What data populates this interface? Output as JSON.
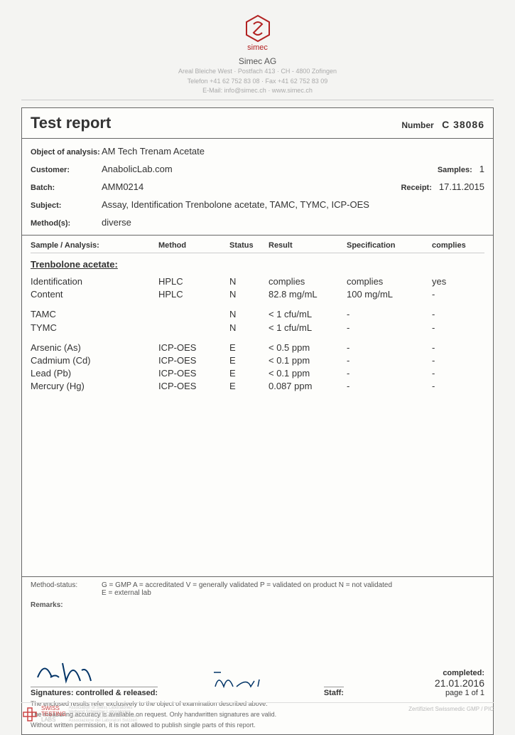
{
  "logo": {
    "brand": "simec",
    "stroke": "#b22222"
  },
  "header": {
    "company": "Simec AG",
    "addr1": "Areal Bleiche West · Postfach 413 · CH - 4800 Zofingen",
    "addr2": "Telefon +41 62 752 83 08 · Fax +41 62 752 83 09",
    "addr3": "E-Mail: info@simec.ch · www.simec.ch"
  },
  "title": "Test report",
  "number_label": "Number",
  "number_value": "C  38086",
  "meta": {
    "object_label": "Object of analysis:",
    "object_value": "AM Tech Trenam Acetate",
    "customer_label": "Customer:",
    "customer_value": "AnabolicLab.com",
    "samples_label": "Samples:",
    "samples_value": "1",
    "batch_label": "Batch:",
    "batch_value": "AMM0214",
    "receipt_label": "Receipt:",
    "receipt_value": "17.11.2015",
    "subject_label": "Subject:",
    "subject_value": "Assay, Identification Trenbolone acetate, TAMC, TYMC, ICP-OES",
    "methods_label": "Method(s):",
    "methods_value": "diverse"
  },
  "table": {
    "head": {
      "sample": "Sample / Analysis:",
      "method": "Method",
      "status": "Status",
      "result": "Result",
      "spec": "Specification",
      "complies": "complies"
    },
    "section": "Trenbolone acetate:",
    "rows": [
      {
        "sa": "Identification",
        "m": "HPLC",
        "st": "N",
        "r": "complies",
        "sp": "complies",
        "c": "yes"
      },
      {
        "sa": "Content",
        "m": "HPLC",
        "st": "N",
        "r": "82.8 mg/mL",
        "sp": "100 mg/mL",
        "c": "-"
      }
    ],
    "rows2": [
      {
        "sa": "TAMC",
        "m": "",
        "st": "N",
        "r": "< 1 cfu/mL",
        "sp": "-",
        "c": "-"
      },
      {
        "sa": "TYMC",
        "m": "",
        "st": "N",
        "r": "< 1 cfu/mL",
        "sp": "-",
        "c": "-"
      }
    ],
    "rows3": [
      {
        "sa": "Arsenic (As)",
        "m": "ICP-OES",
        "st": "E",
        "r": "< 0.5 ppm",
        "sp": "-",
        "c": "-"
      },
      {
        "sa": "Cadmium (Cd)",
        "m": "ICP-OES",
        "st": "E",
        "r": "< 0.1 ppm",
        "sp": "-",
        "c": "-"
      },
      {
        "sa": "Lead (Pb)",
        "m": "ICP-OES",
        "st": "E",
        "r": "< 0.1 ppm",
        "sp": "-",
        "c": "-"
      },
      {
        "sa": "Mercury (Hg)",
        "m": "ICP-OES",
        "st": "E",
        "r": "0.087 ppm",
        "sp": "-",
        "c": "-"
      }
    ]
  },
  "legend": {
    "label": "Method-status:",
    "line1": "G = GMP   A = accreditated   V = generally validated   P = validated on product   N = not validated",
    "line2": "E = external lab",
    "remarks_label": "Remarks:"
  },
  "sig": {
    "left_label": "Signatures:    controlled & released:",
    "staff_label": "Staff:",
    "completed_label": "completed:",
    "completed_value": "21.01.2016",
    "page": "page 1 of 1",
    "disclaimer1": "The enclosed results refer exclusively to the object of examination described above.",
    "disclaimer2": "The measuring accuracy is available on request. Only handwritten signatures are valid.",
    "disclaimer3": "Without written permission, it is not allowed to publish single parts of this report."
  },
  "footer": {
    "swiss1": "SWISS",
    "swiss2": "TESTING",
    "swiss3": "LABS",
    "assoc": "Association of Swiss Laboratories\nVerband Schweizer Laboratorien\nAssociation des Laboratoires Suisses\nAssociazione dei Laboratori Svizzeri",
    "right": "Zertifiziert Swissmedic GMP / PIC"
  }
}
